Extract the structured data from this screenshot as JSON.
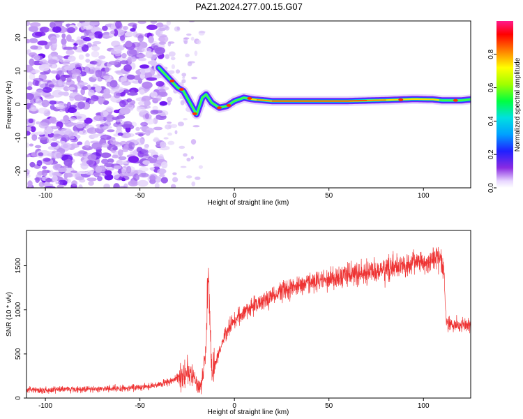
{
  "title": "PAZ1.2024.277.00.15.G07",
  "colors": {
    "snr_line": "#ee3333",
    "frame": "#000000"
  },
  "chart_data": [
    {
      "type": "heatmap",
      "xlabel": "Height of straight line (km)",
      "ylabel": "Frequency (Hz)",
      "xlim": [
        -110,
        125
      ],
      "ylim": [
        -25,
        25
      ],
      "xticks": [
        -100,
        -50,
        0,
        50,
        100
      ],
      "yticks": [
        -20,
        -10,
        0,
        10,
        20
      ],
      "colorbar": {
        "label": "Normalized spectral amplitude",
        "range": [
          0,
          1
        ],
        "ticks": [
          "0.0",
          "0.2",
          "0.4",
          "0.6",
          "0.8"
        ],
        "tick_values": [
          0.0,
          0.2,
          0.4,
          0.6,
          0.8
        ]
      },
      "ridge": [
        {
          "x": -40,
          "f": 11
        },
        {
          "x": -35,
          "f": 8
        },
        {
          "x": -30,
          "f": 5
        },
        {
          "x": -27,
          "f": 4
        },
        {
          "x": -24,
          "f": 1
        },
        {
          "x": -20,
          "f": -3
        },
        {
          "x": -17,
          "f": 2
        },
        {
          "x": -15,
          "f": 3
        },
        {
          "x": -12,
          "f": 0.5
        },
        {
          "x": -8,
          "f": -1
        },
        {
          "x": -4,
          "f": -0.5
        },
        {
          "x": 0,
          "f": 1
        },
        {
          "x": 5,
          "f": 2
        },
        {
          "x": 10,
          "f": 1.5
        },
        {
          "x": 20,
          "f": 1
        },
        {
          "x": 40,
          "f": 1
        },
        {
          "x": 60,
          "f": 1
        },
        {
          "x": 80,
          "f": 1.3
        },
        {
          "x": 95,
          "f": 1.6
        },
        {
          "x": 105,
          "f": 1.5
        },
        {
          "x": 110,
          "f": 1.2
        },
        {
          "x": 120,
          "f": 1.2
        },
        {
          "x": 125,
          "f": 1.5
        }
      ]
    },
    {
      "type": "line",
      "xlabel": "Height of straight line (km)",
      "ylabel": "SNR (10 * v/v)",
      "xlim": [
        -110,
        125
      ],
      "ylim": [
        0,
        1900
      ],
      "xticks": [
        -100,
        -50,
        0,
        50,
        100
      ],
      "yticks": [
        0,
        500,
        1000,
        1500
      ],
      "series": [
        {
          "trend": [
            {
              "x": -110,
              "y": 90
            },
            {
              "x": -80,
              "y": 100
            },
            {
              "x": -60,
              "y": 110
            },
            {
              "x": -45,
              "y": 130
            },
            {
              "x": -38,
              "y": 160
            },
            {
              "x": -30,
              "y": 230
            },
            {
              "x": -25,
              "y": 300
            },
            {
              "x": -22,
              "y": 250
            },
            {
              "x": -18,
              "y": 100
            },
            {
              "x": -15,
              "y": 550
            },
            {
              "x": -14,
              "y": 1300
            },
            {
              "x": -13,
              "y": 900
            },
            {
              "x": -12,
              "y": 300
            },
            {
              "x": -10,
              "y": 400
            },
            {
              "x": -5,
              "y": 700
            },
            {
              "x": 0,
              "y": 900
            },
            {
              "x": 10,
              "y": 1050
            },
            {
              "x": 20,
              "y": 1150
            },
            {
              "x": 30,
              "y": 1250
            },
            {
              "x": 40,
              "y": 1300
            },
            {
              "x": 50,
              "y": 1350
            },
            {
              "x": 60,
              "y": 1400
            },
            {
              "x": 70,
              "y": 1430
            },
            {
              "x": 80,
              "y": 1460
            },
            {
              "x": 90,
              "y": 1500
            },
            {
              "x": 100,
              "y": 1550
            },
            {
              "x": 109,
              "y": 1580
            },
            {
              "x": 111,
              "y": 1400
            },
            {
              "x": 112,
              "y": 850
            },
            {
              "x": 118,
              "y": 820
            },
            {
              "x": 125,
              "y": 820
            }
          ]
        }
      ]
    }
  ]
}
